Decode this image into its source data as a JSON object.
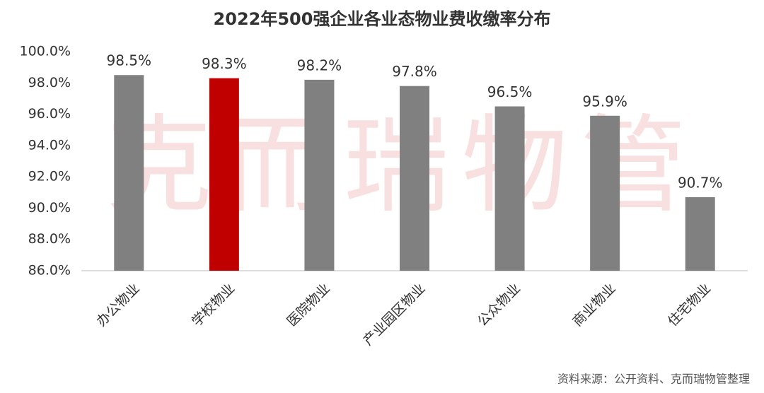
{
  "chart_data": {
    "type": "bar",
    "title": "2022年500强企业各业态物业费收缴率分布",
    "categories": [
      "办公物业",
      "学校物业",
      "医院物业",
      "产业园区物业",
      "公众物业",
      "商业物业",
      "住宅物业"
    ],
    "values": [
      98.5,
      98.3,
      98.2,
      97.8,
      96.5,
      95.9,
      90.7
    ],
    "value_labels": [
      "98.5%",
      "98.3%",
      "98.2%",
      "97.8%",
      "96.5%",
      "95.9%",
      "90.7%"
    ],
    "colors": [
      "#808080",
      "#c00000",
      "#808080",
      "#808080",
      "#808080",
      "#808080",
      "#808080"
    ],
    "ylim": [
      86,
      100
    ],
    "yticks": [
      {
        "value": 86,
        "label": "86.0%"
      },
      {
        "value": 88,
        "label": "88.0%"
      },
      {
        "value": 90,
        "label": "90.0%"
      },
      {
        "value": 92,
        "label": "92.0%"
      },
      {
        "value": 94,
        "label": "94.0%"
      },
      {
        "value": 96,
        "label": "96.0%"
      },
      {
        "value": 98,
        "label": "98.0%"
      },
      {
        "value": 100,
        "label": "100.0%"
      }
    ],
    "watermark": "克而瑞物管",
    "source": "资料来源：公开资料、克而瑞物管整理"
  }
}
